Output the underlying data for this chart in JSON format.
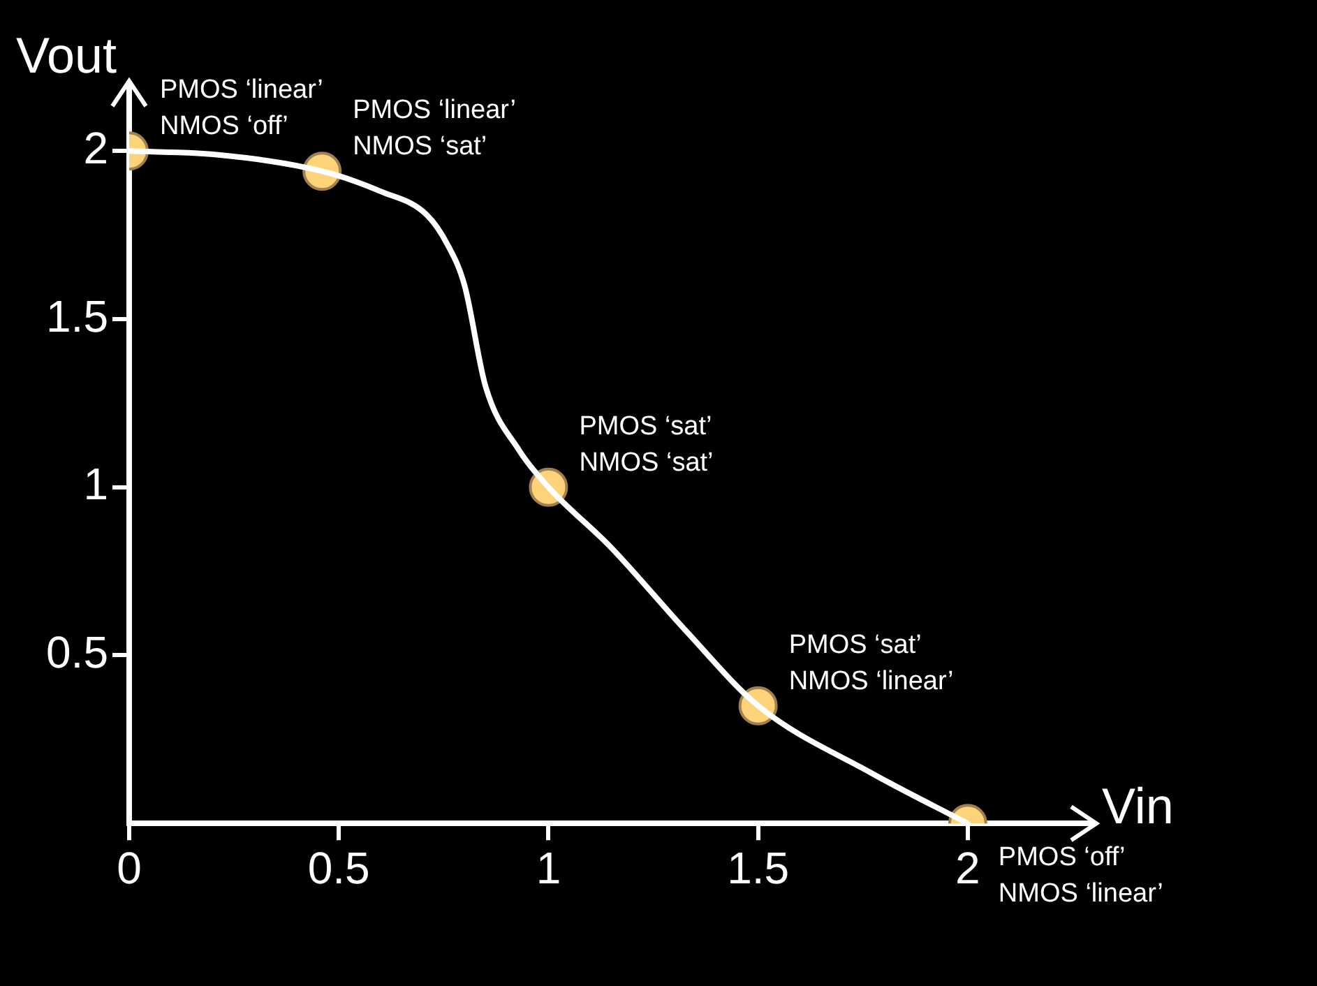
{
  "chart_data": {
    "type": "line",
    "xlabel": "Vin",
    "ylabel": "Vout",
    "xlim": [
      0,
      2.3
    ],
    "ylim": [
      0,
      2.2
    ],
    "xticks": [
      0,
      0.5,
      1,
      1.5,
      2
    ],
    "yticks": [
      0.5,
      1,
      1.5,
      2
    ],
    "grid": false,
    "legend": false,
    "series": [
      {
        "color": "#ffffff",
        "marker": "none",
        "x": [
          0,
          0.2,
          0.46,
          0.6,
          0.71,
          0.76,
          0.8,
          0.85,
          0.93,
          1,
          1.15,
          1.33,
          1.5,
          1.77,
          2
        ],
        "values": [
          2,
          1.99,
          1.94,
          1.88,
          1.81,
          1.72,
          1.6,
          1.3,
          1.11,
          1,
          0.82,
          0.57,
          0.35,
          0.15,
          0
        ]
      },
      {
        "type": "scatter",
        "color": "#fdd37a",
        "marker": "circle",
        "x": [
          0,
          0.46,
          1,
          1.5,
          2
        ],
        "values": [
          2,
          1.94,
          1,
          0.35,
          0
        ]
      }
    ],
    "annotations": [
      {
        "text": "PMOS ‘linear’\nNMOS ‘off’",
        "x": 0,
        "y": 2
      },
      {
        "text": "PMOS ‘linear’\nNMOS ‘sat’",
        "x": 0.46,
        "y": 1.94
      },
      {
        "text": "PMOS ‘sat’\nNMOS ‘sat’",
        "x": 1,
        "y": 1
      },
      {
        "text": "PMOS ‘sat’\nNMOS ‘linear’",
        "x": 1.5,
        "y": 0.35
      },
      {
        "text": "PMOS ‘off’\nNMOS ‘linear’",
        "x": 2,
        "y": 0
      }
    ]
  }
}
